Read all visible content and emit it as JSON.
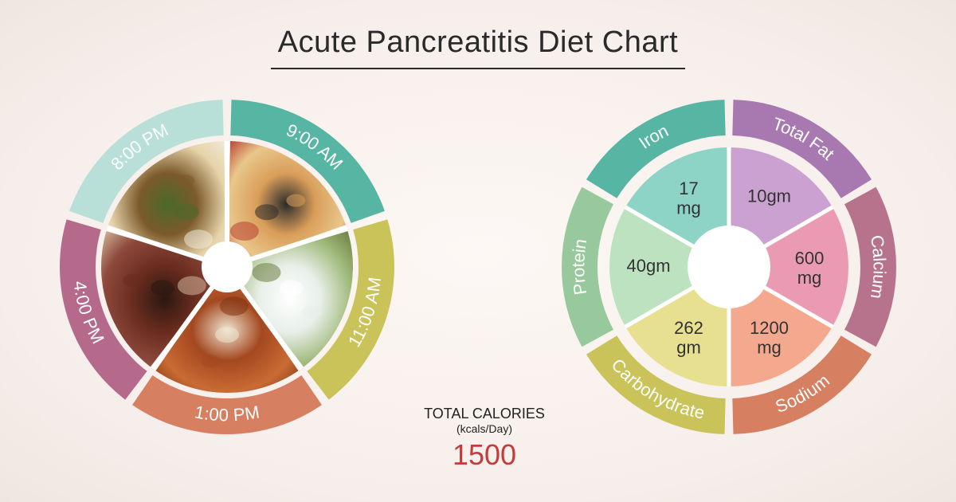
{
  "title": "Acute Pancreatitis Diet Chart",
  "background": {
    "center": "#fdf8f5",
    "edge": "#f0e6e1"
  },
  "calories": {
    "label_line1": "TOTAL CALORIES",
    "label_line2": "(kcals/Day)",
    "value": "1500",
    "value_color": "#c73a3a"
  },
  "left_wheel": {
    "type": "time-wheel",
    "segments": 5,
    "outer_radius": 210,
    "ring_outer_r": 210,
    "ring_inner_r": 165,
    "image_outer_r": 158,
    "hub_r": 32,
    "start_angle_deg": -90,
    "gap_deg": 3,
    "hub_color": "#ffffff",
    "items": [
      {
        "label": "9:00 AM",
        "arc_color": "#57b6a3",
        "food_colors": [
          "#d99e59",
          "#e9c68b",
          "#b84030",
          "#2b2b2b"
        ]
      },
      {
        "label": "11:00 AM",
        "arc_color": "#c9c35a",
        "food_colors": [
          "#e8efe9",
          "#9fb97a",
          "#6a7d3f",
          "#ffffff"
        ]
      },
      {
        "label": "1:00 PM",
        "arc_color": "#d67f61",
        "food_colors": [
          "#a44820",
          "#c96b34",
          "#7f3413",
          "#efe5d1"
        ]
      },
      {
        "label": "4:00 PM",
        "arc_color": "#b56a8c",
        "food_colors": [
          "#6a2c1f",
          "#8e4a3c",
          "#d2b79a",
          "#2b1810"
        ]
      },
      {
        "label": "8:00 PM",
        "arc_color": "#b8e0d8",
        "food_colors": [
          "#7c5a2b",
          "#e6d3a9",
          "#f1e9d8",
          "#4a6a2a"
        ],
        "label_text_color": "#4a8f80"
      }
    ]
  },
  "right_wheel": {
    "type": "nutrient-wheel",
    "segments": 6,
    "ring_outer_r": 210,
    "ring_inner_r": 165,
    "pie_outer_r": 150,
    "hub_r": 52,
    "start_angle_deg": -90,
    "gap_deg": 3,
    "hub_color": "#ffffff",
    "items": [
      {
        "label": "Total Fat",
        "value": "10gm",
        "arc_color": "#a779b0",
        "pie_color": "#caa1d0"
      },
      {
        "label": "Calcium",
        "value": "600 mg",
        "arc_color": "#b8738c",
        "pie_color": "#ea9bb3"
      },
      {
        "label": "Sodium",
        "value": "1200 mg",
        "arc_color": "#d67f61",
        "pie_color": "#f4a98e"
      },
      {
        "label": "Carbohydrate",
        "value": "262 gm",
        "arc_color": "#c9c35a",
        "pie_color": "#e7e090"
      },
      {
        "label": "Protein",
        "value": "40gm",
        "arc_color": "#98c99c",
        "pie_color": "#bde2c0"
      },
      {
        "label": "Iron",
        "value": "17 mg",
        "arc_color": "#56b6a3",
        "pie_color": "#8dd4c6"
      }
    ]
  },
  "typography": {
    "title_fontsize": 38,
    "arc_label_fontsize": 22,
    "value_fontsize": 22,
    "calories_value_fontsize": 36
  }
}
